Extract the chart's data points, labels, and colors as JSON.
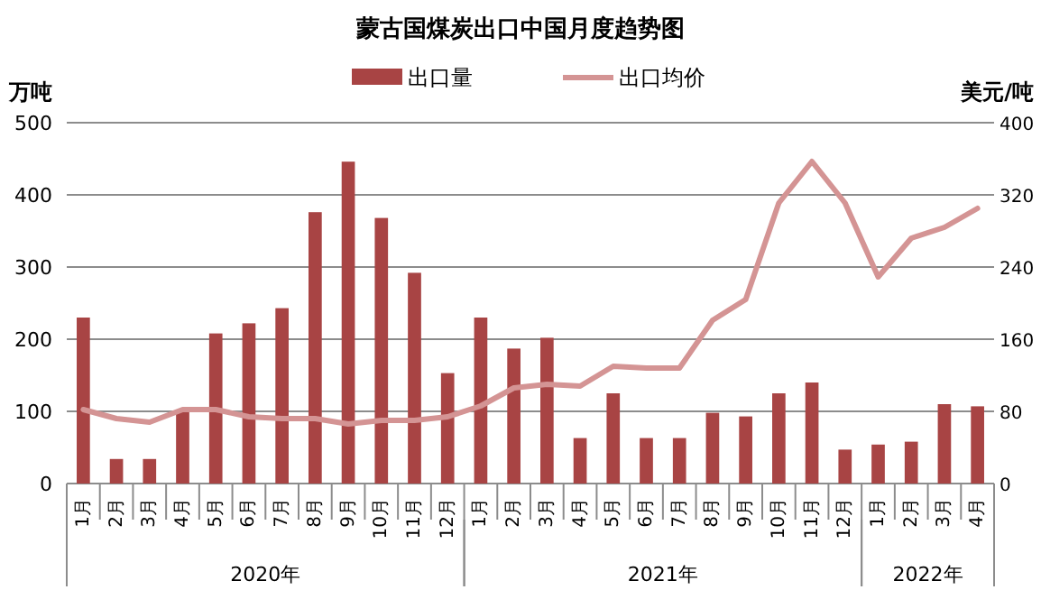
{
  "chart_data": {
    "type": "bar",
    "title": "蒙古国煤炭出口中国月度趋势图",
    "ylabel": "万吨",
    "y2label": "美元/吨",
    "categories": [
      "1月",
      "2月",
      "3月",
      "4月",
      "5月",
      "6月",
      "7月",
      "8月",
      "9月",
      "10月",
      "11月",
      "12月",
      "1月",
      "2月",
      "3月",
      "4月",
      "5月",
      "6月",
      "7月",
      "8月",
      "9月",
      "10月",
      "11月",
      "12月",
      "1月",
      "2月",
      "3月",
      "4月"
    ],
    "series": [
      {
        "name": "出口量",
        "color": "#a84444",
        "values": [
          230,
          34,
          34,
          100,
          208,
          222,
          243,
          376,
          446,
          368,
          292,
          153,
          230,
          187,
          202,
          63,
          125,
          63,
          63,
          98,
          93,
          125,
          140,
          47,
          54,
          58,
          110,
          107
        ]
      },
      {
        "name": "出口均价",
        "type": "line",
        "axis": "y2",
        "color": "#d49494",
        "values": [
          82,
          72,
          68,
          82,
          82,
          74,
          72,
          72,
          66,
          70,
          70,
          74,
          86,
          106,
          110,
          108,
          130,
          128,
          128,
          181,
          204,
          311,
          357,
          311,
          229,
          272,
          284,
          305
        ]
      }
    ],
    "ylim": [
      0,
      500
    ],
    "yticks": [
      0,
      100,
      200,
      300,
      400,
      500
    ],
    "y2lim": [
      0,
      400
    ],
    "y2ticks": [
      0,
      80,
      160,
      240,
      320,
      400
    ],
    "grid": "y",
    "legend": "top",
    "marker": "none",
    "line_style": "solid",
    "annotations": [
      "2020年",
      "2021年",
      "2022年"
    ]
  }
}
